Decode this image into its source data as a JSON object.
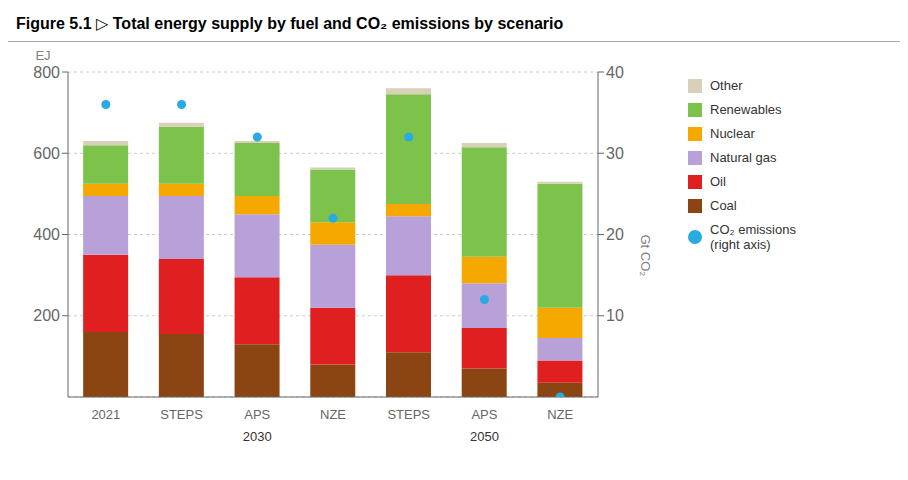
{
  "chart_data": {
    "type": "bar",
    "title": "Figure 5.1 ▷ Total energy supply by fuel and CO₂ emissions by scenario",
    "y_label": "EJ",
    "y2_label": "Gt CO₂",
    "categories": [
      "2021",
      "STEPS",
      "APS",
      "NZE",
      "STEPS",
      "APS",
      "NZE"
    ],
    "annotations": [
      "2030",
      "2050"
    ],
    "stacked": true,
    "grid": true,
    "legend": "right",
    "ylim": [
      0,
      800
    ],
    "yticks": [
      200,
      400,
      600,
      800
    ],
    "y2lim": [
      0,
      40
    ],
    "y2ticks": [
      10,
      20,
      30,
      40
    ],
    "series": [
      {
        "name": "Coal",
        "color": "#8B4513",
        "values": [
          160,
          155,
          130,
          80,
          110,
          70,
          35
        ]
      },
      {
        "name": "Oil",
        "color": "#E02020",
        "values": [
          190,
          185,
          165,
          140,
          190,
          100,
          55
        ]
      },
      {
        "name": "Natural gas",
        "color": "#B8A0D8",
        "values": [
          145,
          155,
          155,
          155,
          145,
          110,
          55
        ]
      },
      {
        "name": "Nuclear",
        "color": "#F5A800",
        "values": [
          30,
          30,
          45,
          55,
          30,
          65,
          75
        ]
      },
      {
        "name": "Renewables",
        "color": "#7DC34B",
        "values": [
          95,
          140,
          130,
          130,
          270,
          270,
          305
        ]
      },
      {
        "name": "Other",
        "color": "#D8D0B8",
        "values": [
          10,
          10,
          5,
          5,
          15,
          10,
          5
        ]
      },
      {
        "name": "CO₂ emissions\n(right axis)",
        "type": "scatter",
        "axis": "y2",
        "color": "#29ABE2",
        "values": [
          36,
          36,
          32,
          22,
          32,
          12,
          0
        ]
      }
    ]
  }
}
